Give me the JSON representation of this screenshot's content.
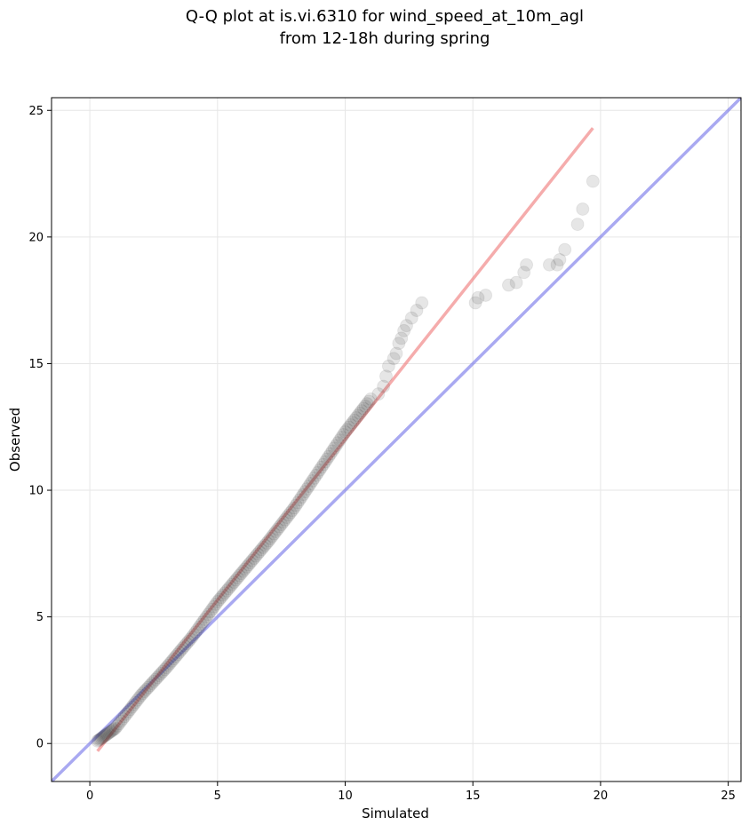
{
  "chart_data": {
    "type": "scatter",
    "title_lines": [
      "Q-Q plot at is.vi.6310 for wind_speed_at_10m_agl",
      "from 12-18h during spring"
    ],
    "xlabel": "Simulated",
    "ylabel": "Observed",
    "xlim": [
      -1.5,
      25.5
    ],
    "ylim": [
      -1.5,
      25.5
    ],
    "xticks": [
      0,
      5,
      10,
      15,
      20,
      25
    ],
    "yticks": [
      0,
      5,
      10,
      15,
      20,
      25
    ],
    "grid": true,
    "colors": {
      "points": "#333333",
      "fit_line": "#f08080",
      "reference_line": "#7b7bea"
    },
    "fit_line": {
      "x": [
        0.3,
        19.7
      ],
      "y": [
        -0.3,
        24.3
      ]
    },
    "reference_line": {
      "x": [
        -1.5,
        25.5
      ],
      "y": [
        -1.5,
        25.5
      ]
    },
    "dense_segment": {
      "x": [
        0.3,
        1.0,
        2.0,
        3.0,
        4.0,
        5.0,
        6.0,
        7.0,
        8.0,
        9.0,
        10.0,
        11.0
      ],
      "y": [
        0.1,
        0.6,
        1.9,
        3.0,
        4.2,
        5.6,
        6.8,
        8.0,
        9.3,
        10.8,
        12.3,
        13.6
      ],
      "points_per_step": 14
    },
    "sparse_points": {
      "x": [
        11.3,
        11.5,
        11.6,
        11.7,
        11.9,
        12.0,
        12.1,
        12.2,
        12.3,
        12.4,
        12.6,
        12.8,
        13.0,
        15.1,
        15.2,
        15.5,
        16.4,
        16.7,
        17.0,
        17.1,
        18.0,
        18.3,
        18.4,
        18.6,
        19.1,
        19.3,
        19.7
      ],
      "y": [
        13.8,
        14.1,
        14.5,
        14.9,
        15.2,
        15.4,
        15.8,
        16.0,
        16.3,
        16.5,
        16.8,
        17.1,
        17.4,
        17.4,
        17.6,
        17.7,
        18.1,
        18.2,
        18.6,
        18.9,
        18.9,
        18.9,
        19.1,
        19.5,
        20.5,
        21.1,
        22.2
      ]
    }
  }
}
